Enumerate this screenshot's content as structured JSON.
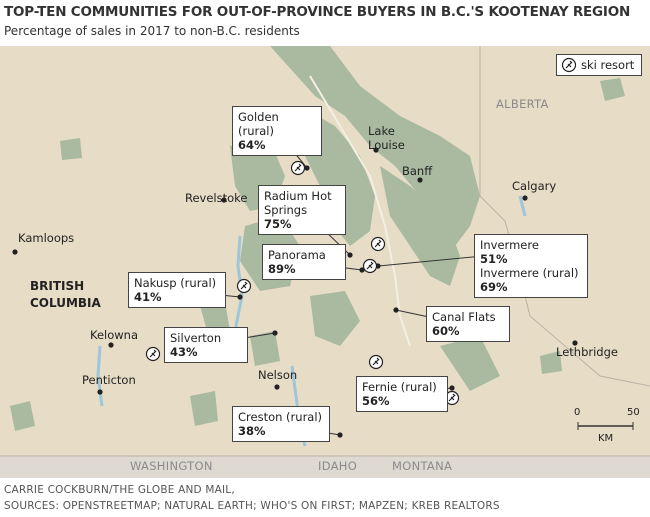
{
  "header": {
    "title": "TOP-TEN COMMUNITIES FOR OUT-OF-PROVINCE BUYERS IN B.C.'S KOOTENAY REGION",
    "subtitle": "Percentage of sales in 2017 to non-B.C. residents"
  },
  "legend": {
    "label": "ski resort"
  },
  "callouts": [
    {
      "entries": [
        {
          "name": "Golden (rural)",
          "value": "64%"
        }
      ]
    },
    {
      "entries": [
        {
          "name": "Radium Hot Springs",
          "value": "75%"
        }
      ]
    },
    {
      "entries": [
        {
          "name": "Panorama",
          "value": "89%"
        }
      ]
    },
    {
      "entries": [
        {
          "name": "Invermere",
          "value": "51%"
        },
        {
          "name": "Invermere (rural)",
          "value": "69%"
        }
      ]
    },
    {
      "entries": [
        {
          "name": "Nakusp (rural)",
          "value": "41%"
        }
      ]
    },
    {
      "entries": [
        {
          "name": "Canal Flats",
          "value": "60%"
        }
      ]
    },
    {
      "entries": [
        {
          "name": "Silverton",
          "value": "43%"
        }
      ]
    },
    {
      "entries": [
        {
          "name": "Fernie (rural)",
          "value": "56%"
        }
      ]
    },
    {
      "entries": [
        {
          "name": "Creston (rural)",
          "value": "38%"
        }
      ]
    }
  ],
  "places": [
    "Revelstoke",
    "Kamloops",
    "BRITISH COLUMBIA",
    "Kelowna",
    "Penticton",
    "Nelson",
    "Lake Louise",
    "Banff",
    "Calgary",
    "Lethbridge"
  ],
  "regions": [
    "ALBERTA",
    "WASHINGTON",
    "IDAHO",
    "MONTANA"
  ],
  "scale": {
    "start": "0",
    "end": "50",
    "unit": "KM"
  },
  "footer": {
    "credit": "CARRIE COCKBURN/THE GLOBE AND MAIL,",
    "sources": "SOURCES: OPENSTREETMAP; NATURAL EARTH; WHO'S ON FIRST; MAPZEN; KREB REALTORS"
  }
}
